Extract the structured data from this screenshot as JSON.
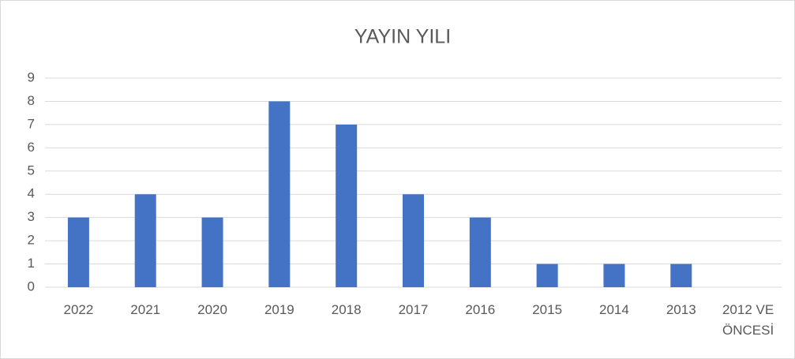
{
  "chart_data": {
    "type": "bar",
    "title": "YAYIN YILI",
    "categories": [
      "2022",
      "2021",
      "2020",
      "2019",
      "2018",
      "2017",
      "2016",
      "2015",
      "2014",
      "2013",
      "2012 VE ÖNCESİ"
    ],
    "values": [
      3,
      4,
      3,
      8,
      7,
      4,
      3,
      1,
      1,
      1,
      0
    ],
    "color": "#4472c4",
    "ylim": [
      0,
      9
    ],
    "yticks": [
      0,
      1,
      2,
      3,
      4,
      5,
      6,
      7,
      8,
      9
    ],
    "grid": true
  }
}
